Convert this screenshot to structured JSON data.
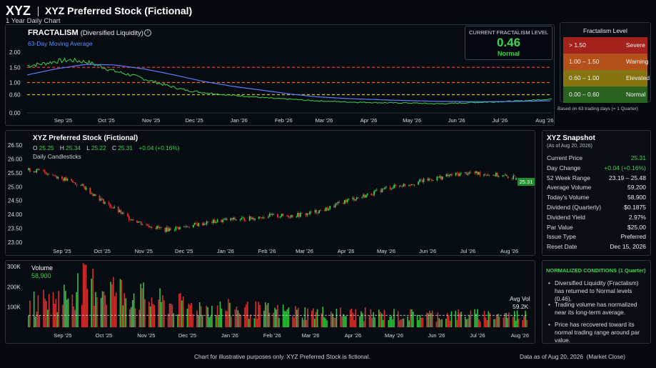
{
  "header": {
    "ticker": "XYZ",
    "title": "XYZ Preferred Stock (Fictional)",
    "subtitle": "1 Year Daily Chart"
  },
  "fractalism_panel": {
    "title": "FRACTALISM",
    "title_suffix": "(Diversified Liquidity)",
    "ma_label": "63-Day Moving Average",
    "info_icon": "info-icon"
  },
  "current_level": {
    "label": "CURRENT FRACTALISM LEVEL",
    "value": "0.46",
    "status": "Normal"
  },
  "fractalism_levels": {
    "title": "Fractalism Level",
    "rows": [
      {
        "range": "> 1.50",
        "name": "Severe",
        "color": "#b3261e"
      },
      {
        "range": "1.00 – 1.50",
        "name": "Warning",
        "color": "#c0571a"
      },
      {
        "range": "0.60 – 1.00",
        "name": "Elevated",
        "color": "#8f7d11"
      },
      {
        "range": "0.00 – 0.60",
        "name": "Normal",
        "color": "#2f6b22"
      }
    ],
    "footnote": "Based on 63 trading days (= 1 Quarter)"
  },
  "price_panel": {
    "title": "XYZ Preferred Stock (Fictional)",
    "ohlc": {
      "o_label": "O",
      "o": "25.25",
      "h_label": "H",
      "h": "25.34",
      "l_label": "L",
      "l": "25.22",
      "c_label": "C",
      "c": "25.31",
      "change": "+0.04 (+0.16%)"
    },
    "sub": "Daily Candlesticks",
    "last_price_tag": "25.31"
  },
  "volume_panel": {
    "title": "Volume",
    "value": "58,900",
    "avg_label": "Avg Vol",
    "avg_value": "59.2K"
  },
  "snapshot": {
    "title": "XYZ Snapshot",
    "as_of": "(As of Aug 20, 2026)",
    "rows": [
      {
        "k": "Current Price",
        "v": "25.31",
        "color": "#3bd44a"
      },
      {
        "k": "Day Change",
        "v": "+0.04 (+0.16%)",
        "color": "#3bd44a"
      },
      {
        "k": "52 Week Range",
        "v": "23.19 – 25.48"
      },
      {
        "k": "Average Volume",
        "v": "59,200"
      },
      {
        "k": "Today's Volume",
        "v": "58,900"
      },
      {
        "k": "Dividend (Quarterly)",
        "v": "$0.1875"
      },
      {
        "k": "Dividend Yield",
        "v": "2.97%"
      },
      {
        "k": "Par Value",
        "v": "$25.00"
      },
      {
        "k": "Issue Type",
        "v": "Preferred"
      },
      {
        "k": "Reset Date",
        "v": "Dec 15, 2026"
      }
    ]
  },
  "conditions": {
    "title": "NORMALIZED CONDITIONS (1 Quarter)",
    "bullets": [
      "Diversified Liquidity (Fractalism) has returned to Normal levels (0.46).",
      "Trading volume has normalized near its long-term average.",
      "Price has recovered toward its normal trading range around par value."
    ]
  },
  "footer": {
    "disclaimer": "Chart for illustrative purposes only. XYZ Preferred Stock is fictional.",
    "data_as_of": "Data as of Aug 20, 2026  (Market Close)"
  },
  "colors": {
    "up": "#3bd44a",
    "down": "#e53935",
    "ma": "#5b7cff",
    "fractalism": "#3bd44a",
    "accent_green": "#3bd44a"
  },
  "chart_data": [
    {
      "type": "line",
      "name": "fractalism",
      "x_tick_labels": [
        "Sep '25",
        "Oct '25",
        "Nov '25",
        "Dec '25",
        "Jan '26",
        "Feb '26",
        "Mar '26",
        "Apr '26",
        "May '26",
        "Jun '26",
        "Jul '26",
        "Aug '26"
      ],
      "y_tick_labels": [
        "2.00",
        "1.50",
        "1.00",
        "0.60",
        "0.00"
      ],
      "ylim": [
        0,
        2.0
      ],
      "threshold_lines": [
        1.5,
        1.0,
        0.6
      ],
      "threshold_colors": [
        "#e53935",
        "#ef6c1a",
        "#d4c21a"
      ],
      "series": [
        {
          "label": "fractalism",
          "x": [
            "Aug 21 '25",
            "Sep 1 '25",
            "Sep 10 '25",
            "Sep 20 '25",
            "Oct 1 '25",
            "Oct 10 '25",
            "Oct 20 '25",
            "Nov 1 '25",
            "Nov 10 '25",
            "Nov 20 '25",
            "Dec 1 '25",
            "Dec 10 '25",
            "Dec 20 '25",
            "Jan 1 '26",
            "Jan 10 '26",
            "Jan 20 '26",
            "Feb 1 '26",
            "Feb 10 '26",
            "Feb 20 '26",
            "Mar 1 '26",
            "Mar 10 '26",
            "Mar 20 '26",
            "Apr 1 '26",
            "Apr 10 '26",
            "Apr 20 '26",
            "May 1 '26",
            "May 10 '26",
            "May 20 '26",
            "Jun 1 '26",
            "Jun 10 '26",
            "Jun 20 '26",
            "Jul 1 '26",
            "Jul 10 '26",
            "Jul 20 '26",
            "Aug 1 '26",
            "Aug 10 '26",
            "Aug 20 '26"
          ],
          "values": [
            1.55,
            1.62,
            1.7,
            1.74,
            1.68,
            1.55,
            1.38,
            1.25,
            1.12,
            0.98,
            0.84,
            0.74,
            0.68,
            0.62,
            0.58,
            0.55,
            0.5,
            0.47,
            0.45,
            0.42,
            0.4,
            0.38,
            0.36,
            0.35,
            0.34,
            0.33,
            0.33,
            0.32,
            0.3,
            0.31,
            0.33,
            0.35,
            0.36,
            0.38,
            0.4,
            0.43,
            0.46
          ]
        },
        {
          "label": "63-Day Moving Average",
          "x": [
            "Aug 21 '25",
            "Sep 10 '25",
            "Oct 1 '25",
            "Oct 20 '25",
            "Nov 10 '25",
            "Dec 1 '25",
            "Dec 20 '26",
            "Jan 10 '26",
            "Feb 1 '26",
            "Feb 20 '26",
            "Mar 10 '26",
            "Apr 1 '26",
            "May 1 '26",
            "Jun 1 '26",
            "Jul 1 '26",
            "Aug 1 '26",
            "Aug 20 '26"
          ],
          "values": [
            1.25,
            1.45,
            1.6,
            1.58,
            1.45,
            1.25,
            1.05,
            0.88,
            0.74,
            0.62,
            0.53,
            0.47,
            0.42,
            0.38,
            0.37,
            0.38,
            0.4
          ]
        }
      ]
    },
    {
      "type": "candlestick",
      "name": "price",
      "x_tick_labels": [
        "Sep '25",
        "Oct '25",
        "Nov '25",
        "Dec '25",
        "Jan '26",
        "Feb '26",
        "Mar '26",
        "Apr '26",
        "May '26",
        "Jun '26",
        "Jul '26",
        "Aug '26"
      ],
      "y_tick_labels": [
        "26.50",
        "26.00",
        "25.50",
        "25.00",
        "24.50",
        "24.00",
        "23.50",
        "23.00"
      ],
      "ylim": [
        23.0,
        26.5
      ],
      "close_path": {
        "x": [
          "Aug 21 '25",
          "Sep 1 '25",
          "Sep 15 '25",
          "Oct 1 '25",
          "Oct 15 '25",
          "Nov 1 '25",
          "Nov 15 '25",
          "Dec 1 '25",
          "Dec 15 '25",
          "Jan 1 '26",
          "Jan 15 '26",
          "Feb 1 '26",
          "Feb 15 '26",
          "Mar 1 '26",
          "Mar 15 '26",
          "Apr 1 '26",
          "Apr 15 '26",
          "May 1 '26",
          "May 15 '26",
          "Jun 1 '26",
          "Jun 15 '26",
          "Jul 1 '26",
          "Jul 15 '26",
          "Aug 1 '26",
          "Aug 20 '26"
        ],
        "values": [
          25.6,
          25.55,
          25.3,
          25.0,
          24.5,
          23.95,
          23.65,
          23.45,
          23.55,
          23.7,
          23.8,
          23.85,
          23.95,
          23.95,
          24.0,
          24.2,
          24.5,
          24.7,
          24.95,
          25.1,
          25.25,
          25.4,
          25.5,
          25.45,
          25.31
        ]
      },
      "last": {
        "open": 25.25,
        "high": 25.34,
        "low": 25.22,
        "close": 25.31
      }
    },
    {
      "type": "bar",
      "name": "volume",
      "x_tick_labels": [
        "Sep '25",
        "Oct '25",
        "Nov '25",
        "Dec '25",
        "Jan '26",
        "Feb '26",
        "Mar '26",
        "Apr '26",
        "May '26",
        "Jun '26",
        "Jul '26",
        "Aug '26"
      ],
      "y_tick_labels": [
        "300K",
        "200K",
        "100K"
      ],
      "ylim": [
        0,
        300000
      ],
      "avg_line": 59200,
      "profile": {
        "x": [
          "Aug 21 '25",
          "Sep 15 '25",
          "Oct 1 '25",
          "Oct 20 '25",
          "Nov 10 '25",
          "Dec 1 '25",
          "Jan 1 '26",
          "Feb 1 '26",
          "Mar 1 '26",
          "Apr 1 '26",
          "May 1 '26",
          "Jun 1 '26",
          "Jul 1 '26",
          "Aug 20 '26"
        ],
        "values": [
          110000,
          150000,
          210000,
          190000,
          150000,
          115000,
          95000,
          85000,
          75000,
          68000,
          62000,
          60000,
          60000,
          58900
        ]
      }
    }
  ]
}
